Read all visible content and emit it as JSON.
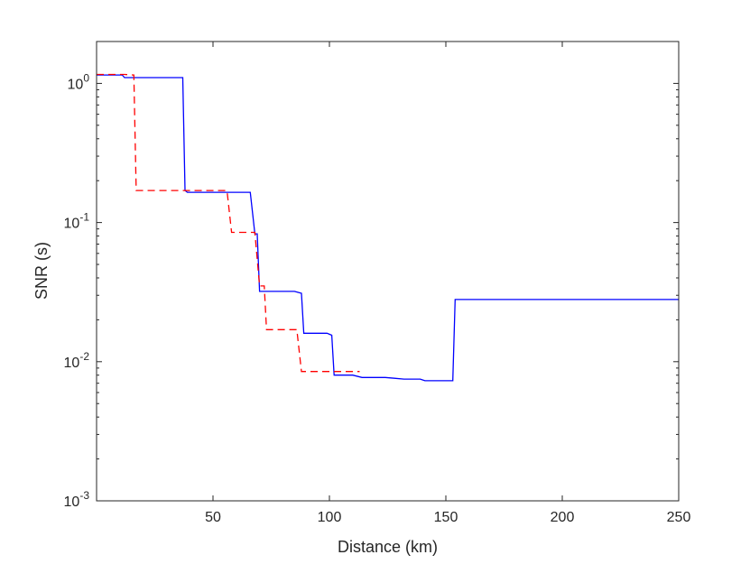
{
  "chart_data": {
    "type": "line",
    "title": "",
    "xlabel": "Distance (km)",
    "ylabel": "SNR (s)",
    "xlim": [
      0,
      250
    ],
    "ylim": [
      0.001,
      2.0
    ],
    "yscale": "log",
    "grid": false,
    "legend": "none",
    "x_ticks": [
      {
        "value": 50,
        "label": "50"
      },
      {
        "value": 100,
        "label": "100"
      },
      {
        "value": 150,
        "label": "150"
      },
      {
        "value": 200,
        "label": "200"
      },
      {
        "value": 250,
        "label": "250"
      }
    ],
    "y_ticks": [
      {
        "value": 0.001,
        "base": "10",
        "exp": "-3"
      },
      {
        "value": 0.01,
        "base": "10",
        "exp": "-2"
      },
      {
        "value": 0.1,
        "base": "10",
        "exp": "-1"
      },
      {
        "value": 1,
        "base": "10",
        "exp": "0"
      }
    ],
    "series": [
      {
        "color": "#0000ff",
        "style": "solid",
        "points": [
          [
            0,
            1.15
          ],
          [
            11,
            1.15
          ],
          [
            12,
            1.1
          ],
          [
            37,
            1.1
          ],
          [
            38,
            0.17
          ],
          [
            39,
            0.165
          ],
          [
            66,
            0.165
          ],
          [
            68,
            0.083
          ],
          [
            69,
            0.083
          ],
          [
            70,
            0.032
          ],
          [
            85,
            0.032
          ],
          [
            88,
            0.031
          ],
          [
            89,
            0.016
          ],
          [
            99,
            0.016
          ],
          [
            101,
            0.0155
          ],
          [
            102,
            0.008
          ],
          [
            110,
            0.008
          ],
          [
            114,
            0.0077
          ],
          [
            124,
            0.0077
          ],
          [
            128,
            0.0076
          ],
          [
            132,
            0.0075
          ],
          [
            139,
            0.0075
          ],
          [
            141,
            0.0073
          ],
          [
            153,
            0.0073
          ],
          [
            154,
            0.028
          ],
          [
            250,
            0.028
          ]
        ]
      },
      {
        "color": "#ff0000",
        "style": "dashed",
        "points": [
          [
            0,
            1.16
          ],
          [
            12,
            1.16
          ],
          [
            16,
            1.15
          ],
          [
            17,
            0.17
          ],
          [
            56,
            0.17
          ],
          [
            58,
            0.085
          ],
          [
            68,
            0.085
          ],
          [
            70,
            0.035
          ],
          [
            72,
            0.035
          ],
          [
            73,
            0.017
          ],
          [
            86,
            0.017
          ],
          [
            88,
            0.0085
          ],
          [
            113,
            0.0085
          ]
        ]
      }
    ]
  }
}
